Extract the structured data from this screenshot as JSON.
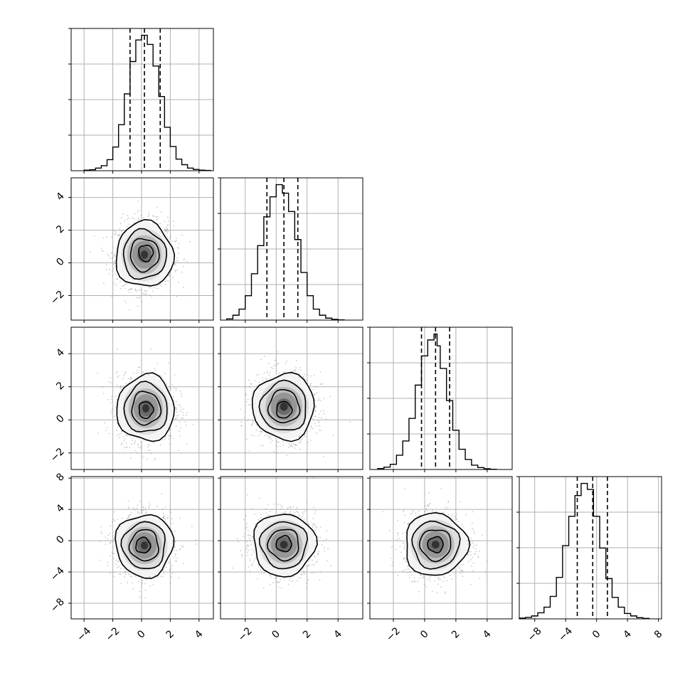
{
  "chart_data": {
    "type": "corner",
    "n_params": 4,
    "grid": true,
    "style": {
      "line_color": "#000000",
      "grid_color": "#b0b0b0",
      "scatter_color": "#8c8c8c"
    },
    "params": [
      {
        "x_range": [
          -4.9,
          5.0
        ],
        "x_ticks": [
          -4,
          -2,
          0,
          2,
          4
        ],
        "x_tick_labels": [
          "−4",
          "−2",
          "0",
          "2",
          "4"
        ],
        "quantiles": [
          -0.8,
          0.2,
          1.3
        ],
        "hist": {
          "edges": [
            -4.0,
            -3.6,
            -3.2,
            -2.8,
            -2.4,
            -2.0,
            -1.6,
            -1.2,
            -0.8,
            -0.4,
            0.0,
            0.4,
            0.8,
            1.2,
            1.6,
            2.0,
            2.4,
            2.8,
            3.2,
            3.6,
            4.0,
            4.4,
            4.8
          ],
          "counts": [
            2,
            4,
            10,
            19,
            42,
            90,
            175,
            292,
            415,
            497,
            515,
            480,
            398,
            282,
            165,
            92,
            44,
            23,
            10,
            5,
            2,
            1
          ]
        }
      },
      {
        "x_range": [
          -3.6,
          5.6
        ],
        "y_range": [
          -3.5,
          5.2
        ],
        "x_ticks": [
          -2,
          0,
          2,
          4
        ],
        "x_tick_labels": [
          "−2",
          "0",
          "2",
          "4"
        ],
        "y_ticks": [
          -2,
          0,
          2,
          4
        ],
        "y_tick_labels": [
          "−2",
          "0",
          "2",
          "4"
        ],
        "quantiles": [
          -0.6,
          0.5,
          1.4
        ],
        "hist": {
          "edges": [
            -3.2,
            -2.8,
            -2.4,
            -2.0,
            -1.6,
            -1.2,
            -0.8,
            -0.4,
            0.0,
            0.4,
            0.8,
            1.2,
            1.6,
            2.0,
            2.4,
            2.8,
            3.2,
            3.6,
            4.0,
            4.4
          ],
          "counts": [
            5,
            20,
            45,
            100,
            190,
            305,
            423,
            505,
            555,
            520,
            445,
            330,
            195,
            100,
            45,
            20,
            8,
            3,
            1
          ]
        }
      },
      {
        "x_range": [
          -3.5,
          5.6
        ],
        "y_range": [
          -3.0,
          5.6
        ],
        "x_ticks": [
          -2,
          0,
          2,
          4
        ],
        "x_tick_labels": [
          "−2",
          "0",
          "2",
          "4"
        ],
        "y_ticks": [
          -2,
          0,
          2,
          4
        ],
        "y_tick_labels": [
          "−2",
          "0",
          "2",
          "4"
        ],
        "quantiles": [
          -0.2,
          0.7,
          1.6
        ],
        "hist": {
          "edges": [
            -3.0,
            -2.6,
            -2.2,
            -1.8,
            -1.4,
            -1.0,
            -0.6,
            -0.2,
            0.2,
            0.6,
            0.8,
            1.0,
            1.4,
            1.8,
            2.2,
            2.6,
            3.0,
            3.4,
            3.8,
            4.2,
            4.6
          ],
          "counts": [
            4,
            10,
            22,
            60,
            120,
            215,
            355,
            478,
            545,
            570,
            520,
            425,
            290,
            165,
            85,
            42,
            18,
            8,
            3,
            1
          ]
        }
      },
      {
        "x_range": [
          -10.0,
          8.4
        ],
        "y_range": [
          -10.0,
          8.2
        ],
        "x_ticks": [
          -8,
          -4,
          0,
          4,
          8
        ],
        "x_tick_labels": [
          "−8",
          "−4",
          "0",
          "4",
          "8"
        ],
        "y_ticks": [
          -8,
          -4,
          0,
          4,
          8
        ],
        "y_tick_labels": [
          "−8",
          "−4",
          "0",
          "4",
          "8"
        ],
        "quantiles": [
          -2.5,
          -0.5,
          1.4
        ],
        "hist": {
          "edges": [
            -10.0,
            -9.2,
            -8.4,
            -7.6,
            -6.8,
            -6.0,
            -5.2,
            -4.4,
            -3.6,
            -2.8,
            -2.0,
            -1.2,
            -0.4,
            0.4,
            1.2,
            2.0,
            2.8,
            3.6,
            4.4,
            5.2,
            6.0,
            6.8
          ],
          "counts": [
            3,
            6,
            12,
            25,
            48,
            92,
            170,
            300,
            420,
            505,
            555,
            530,
            420,
            290,
            165,
            88,
            48,
            22,
            12,
            5,
            2
          ]
        }
      }
    ],
    "pairs": [
      {
        "row": 1,
        "col": 0,
        "mean": [
          0.2,
          0.5
        ],
        "std": [
          1.0,
          1.0
        ],
        "mode": [
          0.3,
          0.6
        ]
      },
      {
        "row": 2,
        "col": 0,
        "mean": [
          0.3,
          0.7
        ],
        "std": [
          1.0,
          1.0
        ],
        "mode": [
          0.3,
          0.6
        ]
      },
      {
        "row": 2,
        "col": 1,
        "mean": [
          0.5,
          0.8
        ],
        "std": [
          1.0,
          1.0
        ],
        "mode": [
          0.5,
          0.6
        ]
      },
      {
        "row": 3,
        "col": 0,
        "mean": [
          0.2,
          -0.6
        ],
        "std": [
          1.0,
          2.0
        ],
        "mode": [
          0.1,
          -0.6
        ]
      },
      {
        "row": 3,
        "col": 1,
        "mean": [
          0.5,
          -0.5
        ],
        "std": [
          1.0,
          2.0
        ],
        "mode": [
          0.5,
          -0.4
        ]
      },
      {
        "row": 3,
        "col": 2,
        "mean": [
          0.7,
          -0.5
        ],
        "std": [
          1.0,
          2.0
        ],
        "mode": [
          0.7,
          -0.5
        ]
      }
    ],
    "contour_levels_sigma": [
      0.5,
      1.0,
      1.5,
      2.0
    ]
  }
}
